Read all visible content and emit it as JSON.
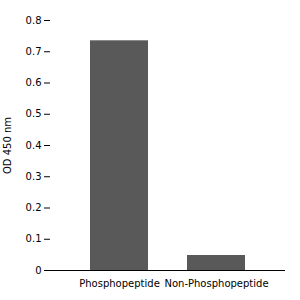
{
  "chart_data": {
    "type": "bar",
    "categories": [
      "Phosphopeptide",
      "Non-Phosphopeptide"
    ],
    "values": [
      0.735,
      0.048
    ],
    "color": "#595959",
    "ylabel": "OD 450 nm",
    "ylim": [
      0,
      0.8
    ],
    "yticks": [
      0,
      0.1,
      0.2,
      0.3,
      0.4,
      0.5,
      0.6,
      0.7,
      0.8
    ],
    "grid": false
  }
}
